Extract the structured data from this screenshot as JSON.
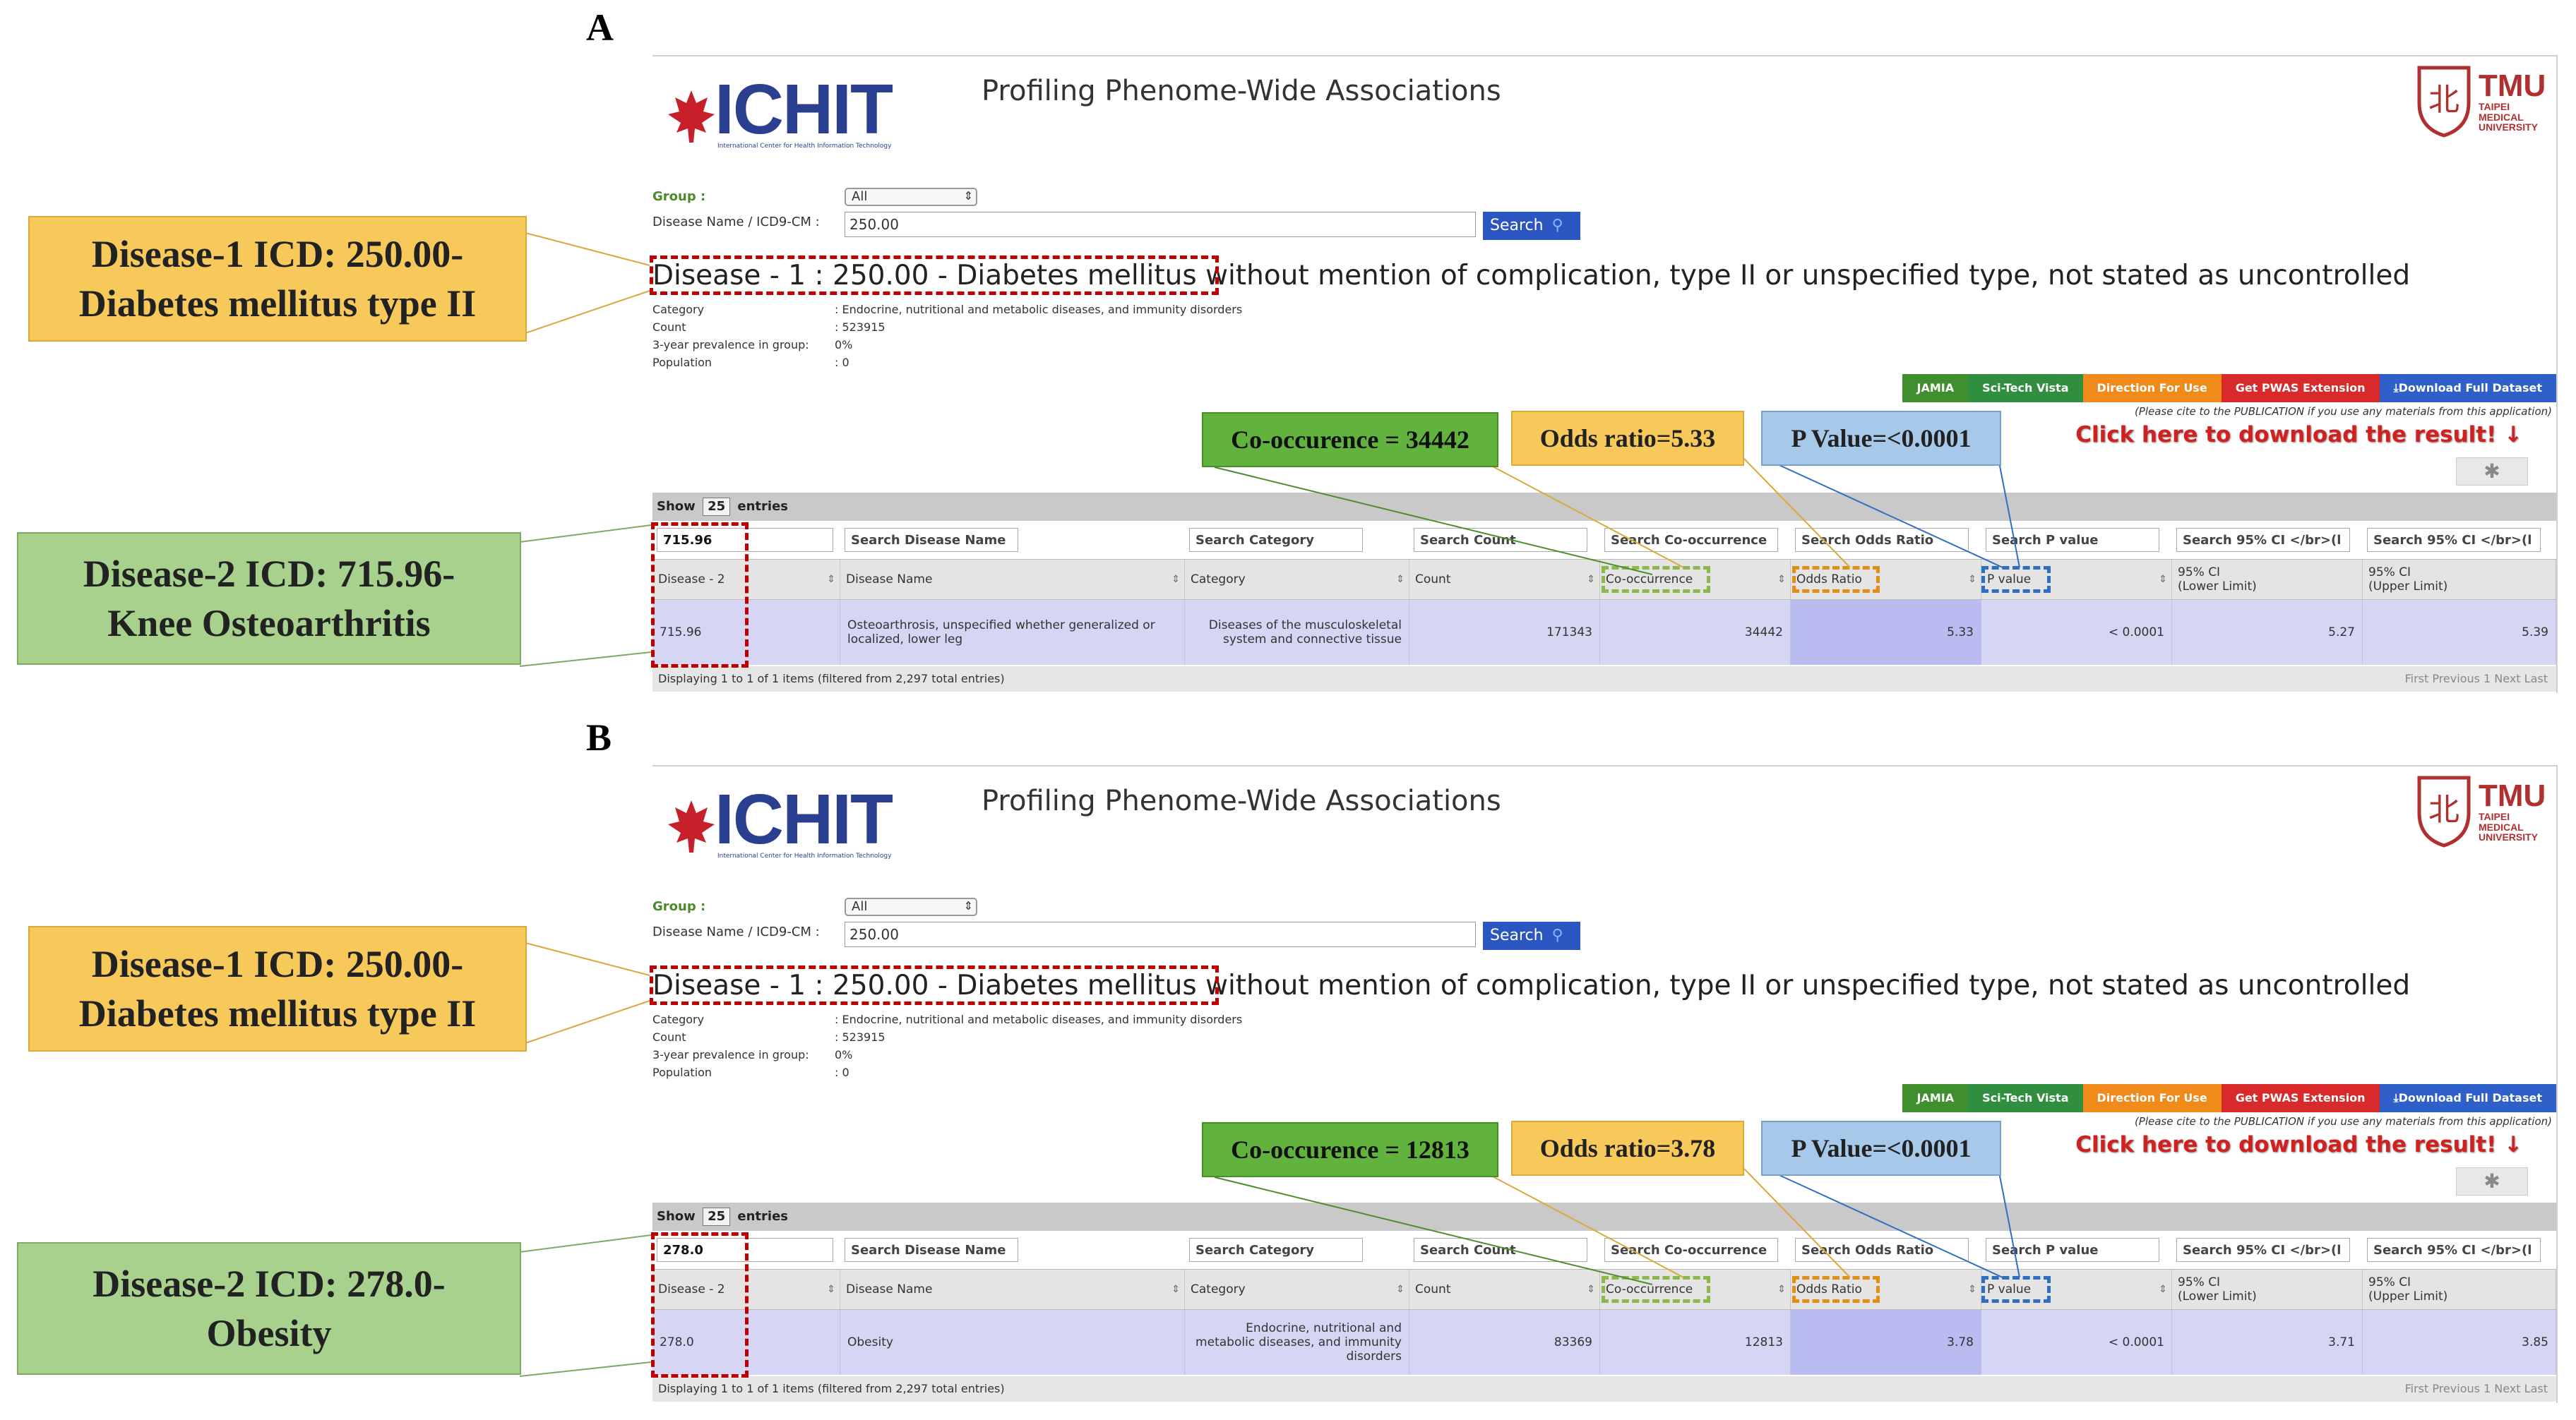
{
  "panels": [
    {
      "letter": "A",
      "logo": {
        "text": "ICHIT",
        "sub": "International Center for Health Information Technology"
      },
      "title": "Profiling Phenome-Wide Associations",
      "tmu": {
        "big": "TMU",
        "line1": "TAIPEI",
        "line2": "MEDICAL",
        "line3": "UNIVERSITY"
      },
      "form": {
        "group_label": "Group :",
        "group_value": "All",
        "name_label": "Disease Name / ICD9-CM :",
        "name_value": "250.00",
        "search_label": "Search"
      },
      "disease1": "Disease - 1 : 250.00 - Diabetes mellitus without mention of complication, type II or unspecified type, not stated as uncontrolled",
      "info": [
        {
          "key": "Category",
          "value": ": Endocrine, nutritional and metabolic diseases, and immunity disorders"
        },
        {
          "key": "Count",
          "value": ": 523915"
        },
        {
          "key": "3-year prevalence in group:",
          "value": "0%"
        },
        {
          "key": "Population",
          "value": ": 0"
        }
      ],
      "buttons": [
        "JAMIA",
        "Sci-Tech Vista",
        "Direction For Use",
        "Get PWAS Extension",
        "⤓Download Full Dataset"
      ],
      "cite": "(Please cite to the PUBLICATION if you use any materials from this application)",
      "download": "Click here to download the result! ↓",
      "show": {
        "prefix": "Show",
        "value": "25",
        "suffix": "entries"
      },
      "filters": [
        "715.96",
        "Search Disease Name",
        "Search Category",
        "Search Count",
        "Search Co-occurrence",
        "Search Odds Ratio",
        "Search P value",
        "Search 95% CI </br>(l",
        "Search 95% CI </br>(l"
      ],
      "headers": [
        "Disease - 2",
        "Disease Name",
        "Category",
        "Count",
        "Co-occurrence",
        "Odds Ratio",
        "P value",
        "95% CI",
        "95% CI"
      ],
      "headers_sub": [
        "",
        "",
        "",
        "",
        "",
        "",
        "",
        "(Lower Limit)",
        "(Upper Limit)"
      ],
      "row": [
        "715.96",
        "Osteoarthrosis, unspecified whether generalized or localized, lower leg",
        "Diseases of the musculoskeletal system and connective tissue",
        "171343",
        "34442",
        "5.33",
        "< 0.0001",
        "5.27",
        "5.39"
      ],
      "footer": "Displaying 1 to 1 of 1 items (filtered from 2,297 total entries)",
      "pager": "First  Previous  1  Next  Last",
      "callouts": {
        "d1_line1": "Disease-1 ICD: 250.00-",
        "d1_line2": "Diabetes mellitus type II",
        "d2_line1": "Disease-2 ICD: 715.96-",
        "d2_line2": "Knee Osteoarthritis",
        "co": "Co-occurence = 34442",
        "odds": "Odds ratio=5.33",
        "p": "P Value=<0.0001"
      }
    },
    {
      "letter": "B",
      "logo": {
        "text": "ICHIT",
        "sub": "International Center for Health Information Technology"
      },
      "title": "Profiling Phenome-Wide Associations",
      "tmu": {
        "big": "TMU",
        "line1": "TAIPEI",
        "line2": "MEDICAL",
        "line3": "UNIVERSITY"
      },
      "form": {
        "group_label": "Group :",
        "group_value": "All",
        "name_label": "Disease Name / ICD9-CM :",
        "name_value": "250.00",
        "search_label": "Search"
      },
      "disease1": "Disease - 1 : 250.00 - Diabetes mellitus without mention of complication, type II or unspecified type, not stated as uncontrolled",
      "info": [
        {
          "key": "Category",
          "value": ": Endocrine, nutritional and metabolic diseases, and immunity disorders"
        },
        {
          "key": "Count",
          "value": ": 523915"
        },
        {
          "key": "3-year prevalence in group:",
          "value": "0%"
        },
        {
          "key": "Population",
          "value": ": 0"
        }
      ],
      "buttons": [
        "JAMIA",
        "Sci-Tech Vista",
        "Direction For Use",
        "Get PWAS Extension",
        "⤓Download Full Dataset"
      ],
      "cite": "(Please cite to the PUBLICATION if you use any materials from this application)",
      "download": "Click here to download the result! ↓",
      "show": {
        "prefix": "Show",
        "value": "25",
        "suffix": "entries"
      },
      "filters": [
        "278.0",
        "Search Disease Name",
        "Search Category",
        "Search Count",
        "Search Co-occurrence",
        "Search Odds Ratio",
        "Search P value",
        "Search 95% CI </br>(l",
        "Search 95% CI </br>(l"
      ],
      "headers": [
        "Disease - 2",
        "Disease Name",
        "Category",
        "Count",
        "Co-occurrence",
        "Odds Ratio",
        "P value",
        "95% CI",
        "95% CI"
      ],
      "headers_sub": [
        "",
        "",
        "",
        "",
        "",
        "",
        "",
        "(Lower Limit)",
        "(Upper Limit)"
      ],
      "row": [
        "278.0",
        "Obesity",
        "Endocrine, nutritional and metabolic diseases, and immunity disorders",
        "83369",
        "12813",
        "3.78",
        "< 0.0001",
        "3.71",
        "3.85"
      ],
      "footer": "Displaying 1 to 1 of 1 items (filtered from 2,297 total entries)",
      "pager": "First  Previous  1  Next  Last",
      "callouts": {
        "d1_line1": "Disease-1 ICD: 250.00-",
        "d1_line2": "Diabetes mellitus type II",
        "d2_line1": "Disease-2 ICD: 278.0-",
        "d2_line2": "Obesity",
        "co": "Co-occurence = 12813",
        "odds": "Odds ratio=3.78",
        "p": "P Value=<0.0001"
      }
    }
  ],
  "colors": {
    "btn_jamia": "#3f8f2f",
    "btn_scitech": "#2f8f3f",
    "btn_direction": "#f08a1a",
    "btn_pwas": "#d82a2a",
    "btn_download": "#2f5fc8",
    "search_btn": "#2b55c0",
    "row_bg": "#d4d6f4",
    "red_dash": "#c00000",
    "green_dash": "#8ab84a",
    "orange_dash": "#e0901a",
    "blue_dash": "#2f6fc0"
  }
}
